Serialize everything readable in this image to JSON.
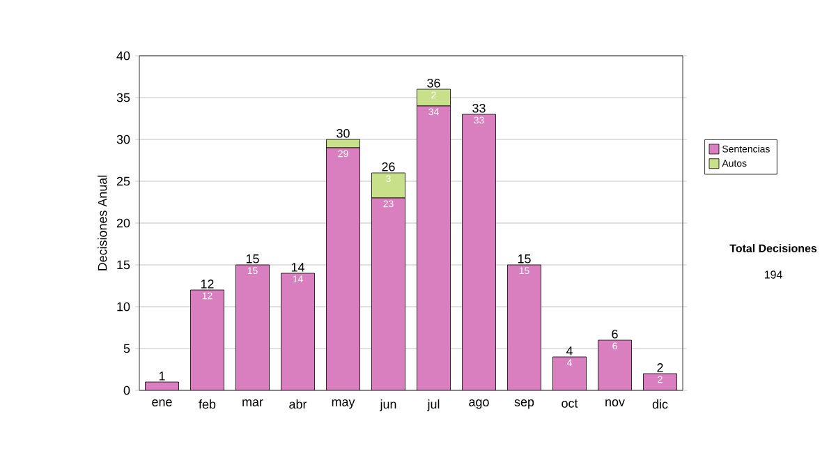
{
  "chart_data": {
    "type": "bar",
    "ylabel": "Decisiones Anual",
    "categories": [
      "ene",
      "feb",
      "mar",
      "abr",
      "may",
      "jun",
      "jul",
      "ago",
      "sep",
      "oct",
      "nov",
      "dic"
    ],
    "series": [
      {
        "name": "Sentencias",
        "color": "#d97fc0",
        "values": [
          1,
          12,
          15,
          14,
          29,
          23,
          34,
          33,
          15,
          4,
          6,
          2
        ],
        "value_labels": [
          null,
          "12",
          "15",
          "14",
          "29",
          "23",
          "34",
          "33",
          "15",
          "4",
          "6",
          "2"
        ]
      },
      {
        "name": "Autos",
        "color": "#c8e08a",
        "values": [
          0,
          0,
          0,
          0,
          1,
          3,
          2,
          0,
          0,
          0,
          0,
          0
        ],
        "value_labels": [
          null,
          null,
          null,
          null,
          null,
          "3",
          "2",
          null,
          null,
          null,
          null,
          null
        ]
      }
    ],
    "stacked": true,
    "totals": [
      "1",
      "12",
      "15",
      "14",
      "30",
      "26",
      "36",
      "33",
      "15",
      "4",
      "6",
      "2"
    ],
    "ylim": [
      0,
      40
    ],
    "yticks": [
      0,
      5,
      10,
      15,
      20,
      25,
      30,
      35,
      40
    ],
    "grid": "y",
    "legend": "right",
    "annotations": [
      "Total Decisiones",
      "194"
    ]
  }
}
